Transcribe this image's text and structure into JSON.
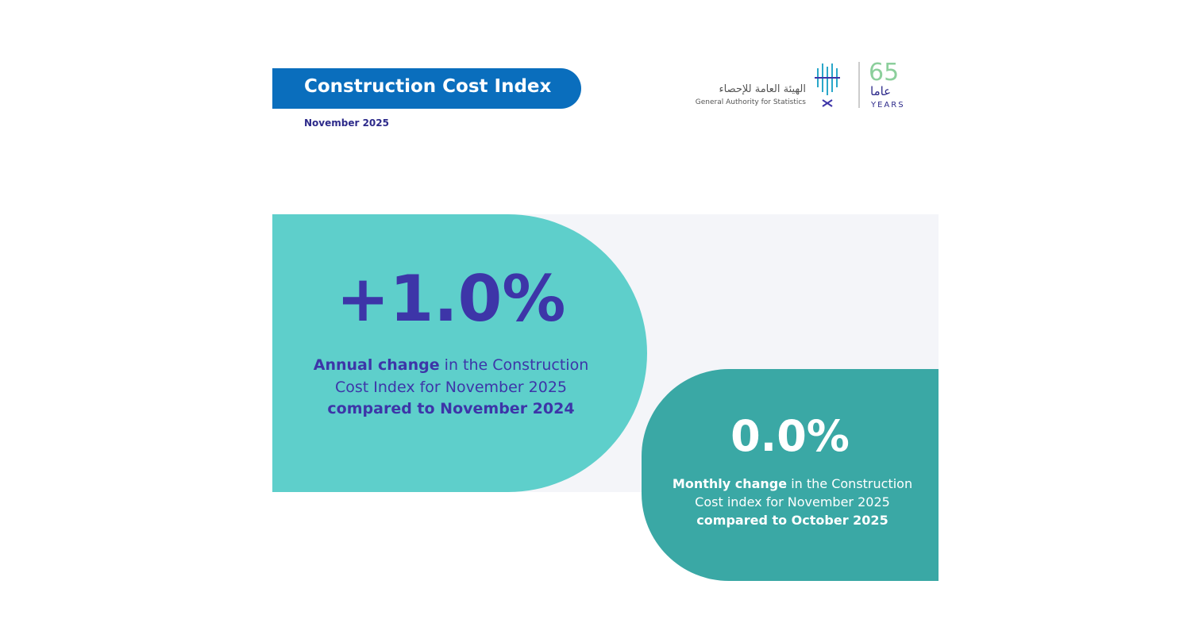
{
  "header": {
    "title": "Construction Cost Index",
    "date": "November 2025"
  },
  "logo": {
    "arabic_name": "الهيئة العامة للإحصاء",
    "english_name": "General Authority for Statistics",
    "anniversary_number": "65",
    "anniversary_arabic": "عاما",
    "anniversary_english": "YEARS"
  },
  "cards": [
    {
      "value": "+1.0%",
      "description": [
        {
          "text": "Annual change",
          "bold": true
        },
        {
          "text": "in the Construction Cost Index for November 2025",
          "bold": false
        },
        {
          "text": "compared to November 2024",
          "bold": true
        }
      ]
    },
    {
      "value": "0.0%",
      "description": [
        {
          "text": "Monthly change",
          "bold": true
        },
        {
          "text": "in the Construction Cost index for November 2025",
          "bold": false
        },
        {
          "text": "compared to October 2025",
          "bold": true
        }
      ]
    }
  ]
}
